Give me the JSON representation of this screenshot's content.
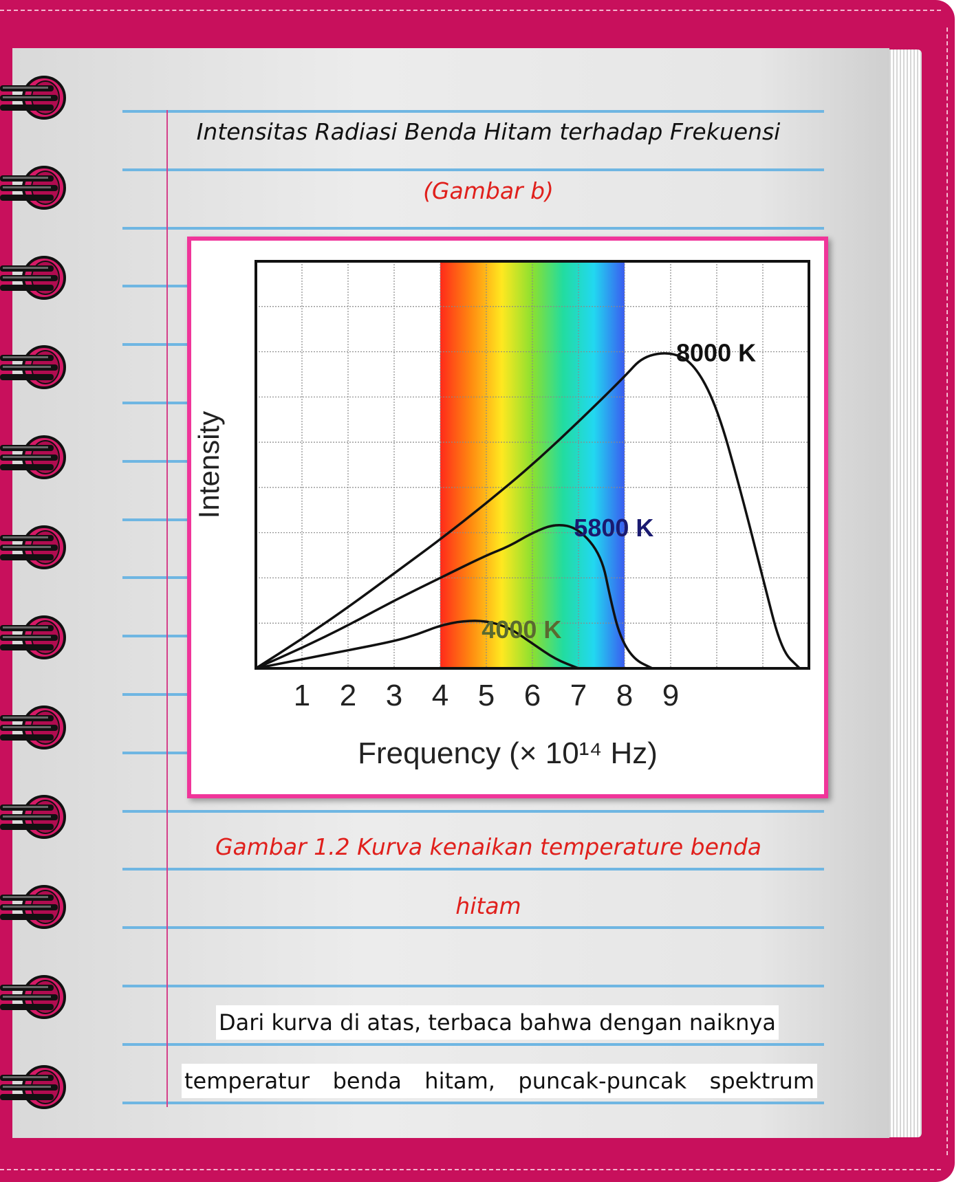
{
  "title": "Intensitas Radiasi Benda Hitam terhadap Frekuensi",
  "subtitle": "(Gambar b)",
  "chart_data": {
    "type": "line",
    "ylabel": "Intensity",
    "xlabel": "Frequency (× 10¹⁴ Hz)",
    "x_ticks": [
      "1",
      "2",
      "3",
      "4",
      "5",
      "6",
      "7",
      "8",
      "9"
    ],
    "xlim": [
      0,
      12
    ],
    "ylim": [
      0,
      9
    ],
    "visible_band": [
      4,
      8
    ],
    "band_colors": [
      "#ff2a1a",
      "#ff8a10",
      "#ffe820",
      "#8be030",
      "#22dca0",
      "#22d8f0",
      "#3a5cf0"
    ],
    "series": [
      {
        "name": "8000 K",
        "points": [
          [
            0,
            0
          ],
          [
            1,
            0.65
          ],
          [
            2,
            1.35
          ],
          [
            3,
            2.1
          ],
          [
            4,
            2.85
          ],
          [
            5,
            3.65
          ],
          [
            6,
            4.5
          ],
          [
            7,
            5.45
          ],
          [
            8,
            6.45
          ],
          [
            8.4,
            6.9
          ],
          [
            9.0,
            7.0
          ],
          [
            9.5,
            6.75
          ],
          [
            10.0,
            5.8
          ],
          [
            10.5,
            4.0
          ],
          [
            11.0,
            2.0
          ],
          [
            11.4,
            0.4
          ],
          [
            11.8,
            0
          ]
        ]
      },
      {
        "name": "5800 K",
        "points": [
          [
            0,
            0
          ],
          [
            1,
            0.45
          ],
          [
            2,
            0.95
          ],
          [
            3,
            1.5
          ],
          [
            4,
            2.0
          ],
          [
            5,
            2.5
          ],
          [
            5.5,
            2.7
          ],
          [
            6,
            3.0
          ],
          [
            6.5,
            3.2
          ],
          [
            7,
            3.1
          ],
          [
            7.5,
            2.5
          ],
          [
            7.7,
            1.5
          ],
          [
            7.9,
            0.7
          ],
          [
            8.2,
            0.2
          ],
          [
            8.6,
            0
          ]
        ]
      },
      {
        "name": "4000 K",
        "points": [
          [
            0,
            0
          ],
          [
            1,
            0.2
          ],
          [
            2,
            0.4
          ],
          [
            3,
            0.6
          ],
          [
            3.5,
            0.75
          ],
          [
            4,
            0.95
          ],
          [
            4.5,
            1.05
          ],
          [
            5,
            1.05
          ],
          [
            5.5,
            0.9
          ],
          [
            6,
            0.55
          ],
          [
            6.5,
            0.2
          ],
          [
            7,
            0
          ]
        ]
      }
    ]
  },
  "caption_line1": "Gambar 1.2 Kurva kenaikan temperature benda",
  "caption_line2": "hitam",
  "paragraph_line1": "Dari kurva di atas, terbaca bahwa dengan naiknya",
  "paragraph_line2": "temperatur  benda  hitam,  puncak-puncak  spektrum"
}
